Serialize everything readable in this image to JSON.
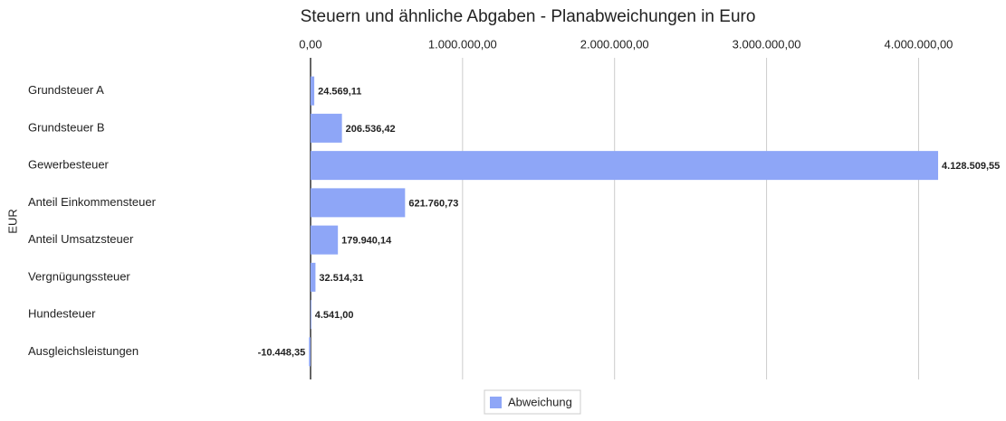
{
  "chart_data": {
    "type": "hbar",
    "title": "Steuern und ähnliche Abgaben - Planabweichungen in Euro",
    "y_label": "EUR",
    "categories": [
      "Grundsteuer A",
      "Grundsteuer B",
      "Gewerbesteuer",
      "Anteil Einkommensteuer",
      "Anteil Umsatzsteuer",
      "Vergnügungssteuer",
      "Hundesteuer",
      "Ausgleichsleistungen"
    ],
    "series": [
      {
        "name": "Abweichung",
        "color": "#8ea6f7",
        "values": [
          24569.11,
          206536.42,
          4128509.55,
          621760.73,
          179940.14,
          32514.31,
          4541.0,
          -10448.35
        ],
        "value_labels": [
          "24.569,11",
          "206.536,42",
          "4.128.509,55",
          "621.760,73",
          "179.940,14",
          "32.514,31",
          "4.541,00",
          "-10.448,35"
        ]
      }
    ],
    "xlim": [
      -20000,
      4450000
    ],
    "xticks": [
      {
        "value": 0,
        "label": "0,00"
      },
      {
        "value": 1000000,
        "label": "1.000.000,00"
      },
      {
        "value": 2000000,
        "label": "2.000.000,00"
      },
      {
        "value": 3000000,
        "label": "3.000.000,00"
      },
      {
        "value": 4000000,
        "label": "4.000.000,00"
      }
    ],
    "grid": true,
    "legend": "bottom"
  }
}
